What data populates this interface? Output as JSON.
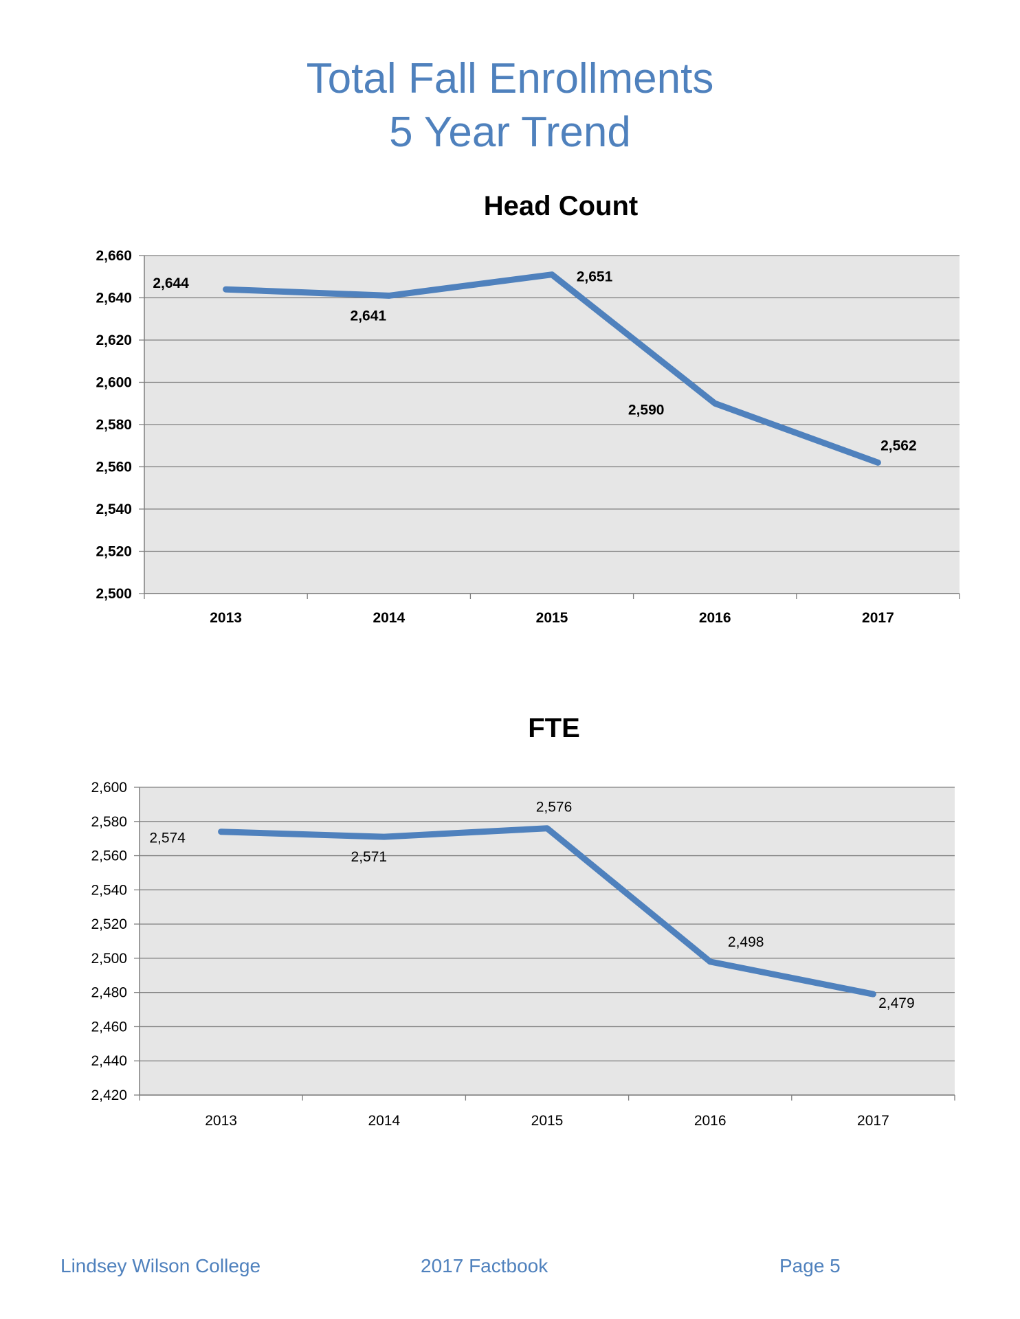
{
  "page": {
    "title_line1": "Total Fall Enrollments",
    "title_line2": "5 Year Trend"
  },
  "footer": {
    "left": "Lindsey Wilson College",
    "center": "2017 Factbook",
    "right": "Page 5"
  },
  "colors": {
    "line": "#4f81bd",
    "plot_bg": "#e6e6e6",
    "grid": "#7f7f7f",
    "accent": "#4f81bd"
  },
  "chart_data": [
    {
      "type": "line",
      "title": "Head Count",
      "categories": [
        "2013",
        "2014",
        "2015",
        "2016",
        "2017"
      ],
      "values": [
        2644,
        2641,
        2651,
        2590,
        2562
      ],
      "data_labels": [
        "2,644",
        "2,641",
        "2,651",
        "2,590",
        "2,562"
      ],
      "ylim": [
        2500,
        2660
      ],
      "yticks": [
        2500,
        2520,
        2540,
        2560,
        2580,
        2600,
        2620,
        2640,
        2660
      ],
      "ytick_labels": [
        "2,500",
        "2,520",
        "2,540",
        "2,560",
        "2,580",
        "2,600",
        "2,620",
        "2,640",
        "2,660"
      ],
      "grid": true,
      "xlabel": "",
      "ylabel": ""
    },
    {
      "type": "line",
      "title": "FTE",
      "categories": [
        "2013",
        "2014",
        "2015",
        "2016",
        "2017"
      ],
      "values": [
        2574,
        2571,
        2576,
        2498,
        2479
      ],
      "data_labels": [
        "2,574",
        "2,571",
        "2,576",
        "2,498",
        "2,479"
      ],
      "ylim": [
        2420,
        2600
      ],
      "yticks": [
        2420,
        2440,
        2460,
        2480,
        2500,
        2520,
        2540,
        2560,
        2580,
        2600
      ],
      "ytick_labels": [
        "2,420",
        "2,440",
        "2,460",
        "2,480",
        "2,500",
        "2,520",
        "2,540",
        "2,560",
        "2,580",
        "2,600"
      ],
      "grid": true,
      "xlabel": "",
      "ylabel": ""
    }
  ]
}
